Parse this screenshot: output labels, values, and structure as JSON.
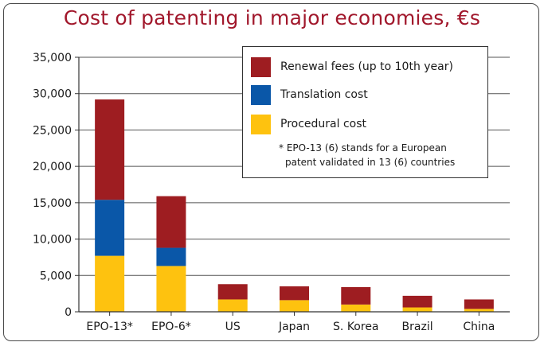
{
  "chart_data": {
    "type": "bar",
    "stacked": true,
    "title": "Cost of patenting in major economies, €s",
    "categories": [
      "EPO-13*",
      "EPO-6*",
      "US",
      "Japan",
      "S. Korea",
      "Brazil",
      "China"
    ],
    "series": [
      {
        "name": "Procedural cost",
        "color": "#fec20f",
        "values": [
          7700,
          6300,
          1700,
          1600,
          1000,
          600,
          400
        ]
      },
      {
        "name": "Translation cost",
        "color": "#0a57a8",
        "values": [
          7700,
          2500,
          0,
          0,
          0,
          0,
          0
        ]
      },
      {
        "name": "Renewal fees (up to 10th year)",
        "color": "#9e1d21",
        "values": [
          13800,
          7100,
          2100,
          1900,
          2400,
          1600,
          1300
        ]
      }
    ],
    "y_ticks": [
      "0",
      "5,000",
      "10,000",
      "15,000",
      "20,000",
      "25,000",
      "30,000",
      "35,000"
    ],
    "ylim": [
      0,
      35000
    ],
    "grid": true,
    "legend_position": "top-right",
    "legend_order": [
      "Renewal fees (up to 10th year)",
      "Translation cost",
      "Procedural cost"
    ],
    "legend_note": [
      "* EPO-13 (6) stands for a European",
      "patent validated in 13 (6) countries"
    ]
  }
}
